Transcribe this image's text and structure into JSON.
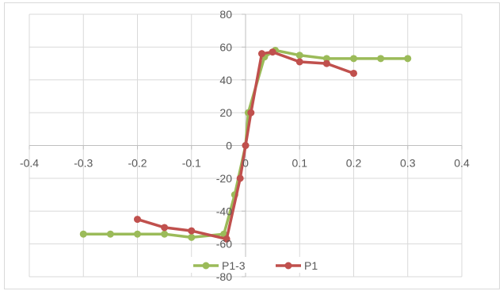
{
  "chart_data": {
    "type": "line",
    "title": "",
    "xlabel": "",
    "ylabel": "",
    "xlim": [
      -0.4,
      0.4
    ],
    "ylim": [
      -80,
      80
    ],
    "x_ticks": [
      -0.4,
      -0.3,
      -0.2,
      -0.1,
      0,
      0.1,
      0.2,
      0.3,
      0.4
    ],
    "y_ticks": [
      -80,
      -60,
      -40,
      -20,
      0,
      20,
      40,
      60,
      80
    ],
    "x_tick_labels": [
      "-0.4",
      "-0.3",
      "-0.2",
      "-0.1",
      "0",
      "0.1",
      "0.2",
      "0.3",
      "0.4"
    ],
    "y_tick_labels": [
      "-80",
      "-60",
      "-40",
      "-20",
      "0",
      "20",
      "40",
      "60",
      "80"
    ],
    "grid": true,
    "legend_position": "bottom",
    "series": [
      {
        "name": "P1-3",
        "color": "#9bbb59",
        "points": [
          [
            -0.3,
            -54
          ],
          [
            -0.25,
            -54
          ],
          [
            -0.2,
            -54
          ],
          [
            -0.15,
            -54
          ],
          [
            -0.1,
            -56
          ],
          [
            -0.04,
            -54
          ],
          [
            -0.02,
            -30
          ],
          [
            0,
            0
          ],
          [
            0.005,
            20
          ],
          [
            0.035,
            54
          ],
          [
            0.055,
            58
          ],
          [
            0.1,
            55
          ],
          [
            0.15,
            53
          ],
          [
            0.2,
            53
          ],
          [
            0.25,
            53
          ],
          [
            0.3,
            53
          ]
        ]
      },
      {
        "name": "P1",
        "color": "#c0504d",
        "points": [
          [
            -0.2,
            -45
          ],
          [
            -0.15,
            -50
          ],
          [
            -0.1,
            -52
          ],
          [
            -0.035,
            -57
          ],
          [
            -0.01,
            -20
          ],
          [
            0,
            0
          ],
          [
            0.01,
            20
          ],
          [
            0.03,
            56
          ],
          [
            0.05,
            57
          ],
          [
            0.1,
            51
          ],
          [
            0.15,
            50
          ],
          [
            0.2,
            44
          ]
        ]
      }
    ]
  }
}
